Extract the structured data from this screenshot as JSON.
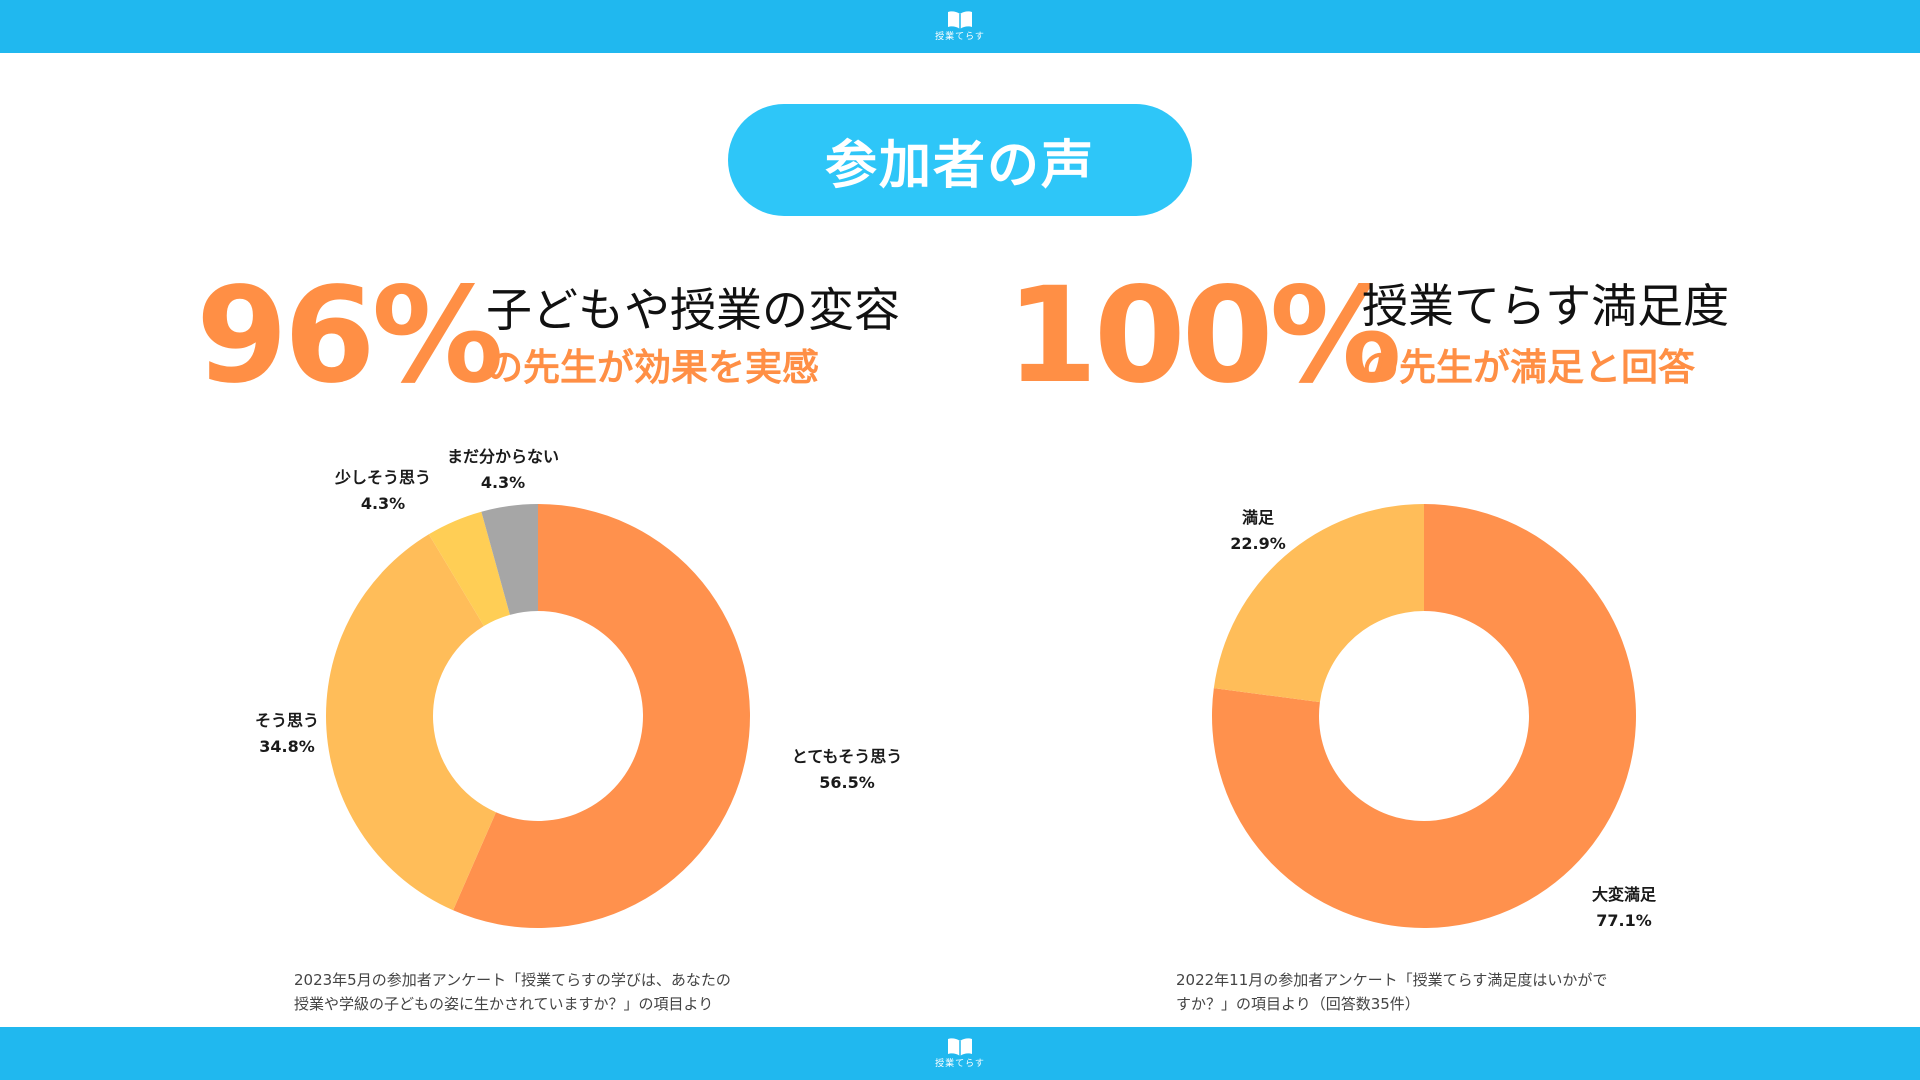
{
  "brand": {
    "logo_text": "授業てらす",
    "logo_icon": "book-icon",
    "bar_color": "#20b8ef"
  },
  "title": "参加者の声",
  "stats": {
    "left": {
      "percent": "96%",
      "line1": "子どもや授業の変容",
      "line2": "の先生が効果を実感"
    },
    "right": {
      "percent": "100%",
      "line1": "授業てらす満足度",
      "line2": "の先生が満足と回答"
    }
  },
  "notes": {
    "left": [
      "2023年5月の参加者アンケート「授業てらすの学びは、あなたの",
      "授業や学級の子どもの姿に生かされていますか？」の項目より"
    ],
    "right": [
      "2022年11月の参加者アンケート「授業てらす満足度はいかがで",
      "すか？」の項目より（回答数35件）"
    ]
  },
  "colors": {
    "accent": "#ff8f45",
    "title_bg": "#2ec6f8"
  },
  "chart_data": [
    {
      "type": "pie",
      "donut": true,
      "slices": [
        {
          "label": "とてもそう思う",
          "value": 56.5,
          "display": "56.5%",
          "color": "#ff914d"
        },
        {
          "label": "そう思う",
          "value": 34.8,
          "display": "34.8%",
          "color": "#ffbd59"
        },
        {
          "label": "少しそう思う",
          "value": 4.3,
          "display": "4.3%",
          "color": "#ffce55"
        },
        {
          "label": "まだ分からない",
          "value": 4.3,
          "display": "4.3%",
          "color": "#a6a6a6"
        }
      ]
    },
    {
      "type": "pie",
      "donut": true,
      "slices": [
        {
          "label": "大変満足",
          "value": 77.1,
          "display": "77.1%",
          "color": "#ff914d"
        },
        {
          "label": "満足",
          "value": 22.9,
          "display": "22.9%",
          "color": "#ffbd59"
        }
      ]
    }
  ]
}
